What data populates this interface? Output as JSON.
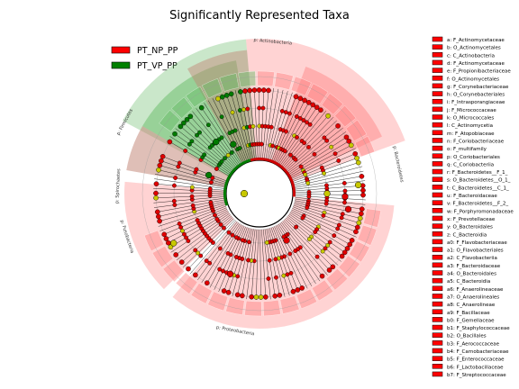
{
  "title": "Significantly Represented Taxa",
  "legend": [
    {
      "label": "PT_NP_PP",
      "color": "#ff0000"
    },
    {
      "label": "PT_VP_PP",
      "color": "#008000"
    }
  ],
  "colors": {
    "red_node": "#e00000",
    "green_node": "#007a00",
    "yellow_node": "#c8c800",
    "red_sector": "#ff8080",
    "green_sector": "#66bb66",
    "brown_sector": "#c08070"
  },
  "sector_labels": [
    "p: Firmicutes",
    "p: Actinobacteria",
    "p: Bacteroidetes",
    "p: Proteobacteria",
    "p: Fusobacteria",
    "p: Spirochaetes"
  ],
  "key_entries": [
    "a: F_Actinomycetaceae",
    "b: O_Actinomycetales",
    "c: C_Actinobacteria",
    "d: F_Actinomycetaceae",
    "e: F_Propionibacteriaceae",
    "f: O_Actinomycetales",
    "g: F_Corynebacteriaceae",
    "h: O_Corynebacteriales",
    "i: F_Intrasporangiaceae",
    "j: F_Micrococcaceae",
    "k: O_Micrococcales",
    "l: C_Actinomycetia",
    "m: F_Atopobiaceae",
    "n: F_Coriobacteriaceae",
    "o: F_multifamily",
    "p: O_Coriobacteriales",
    "q: C_Coriobacteriia",
    "r: F_Bacteroidetes__F_1_",
    "s: O_Bacteroidetes__O_1_",
    "t: C_Bacteroidetes__C_1_",
    "u: F_Bacteroidaceae",
    "v: F_Bacteroidetes__F_2_",
    "w: F_Porphyromonadaceae",
    "x: F_Prevotellaceae",
    "y: O_Bacteroidales",
    "z: C_Bacteroidia",
    "a0: F_Flavobacteriaceae",
    "a1: O_Flavobacteriales",
    "a2: C_Flavobacteriia",
    "a3: F_Bacteroidaceae",
    "a4: O_Bacteroidales",
    "a5: C_Bacteroidia",
    "a6: F_Anaerolineaceae",
    "a7: O_Anaerolineales",
    "a8: C_Anaerolineae",
    "a9: F_Bacillaceae",
    "b0: F_Gemellaceae",
    "b1: F_Staphylococcaceae",
    "b2: O_Bacillales",
    "b3: F_Aerococcaceae",
    "b4: F_Carnobacteriaceae",
    "b5: F_Enterococcaceae",
    "b6: F_Lactobacillaceae",
    "b7: F_Streptococcaceae"
  ]
}
